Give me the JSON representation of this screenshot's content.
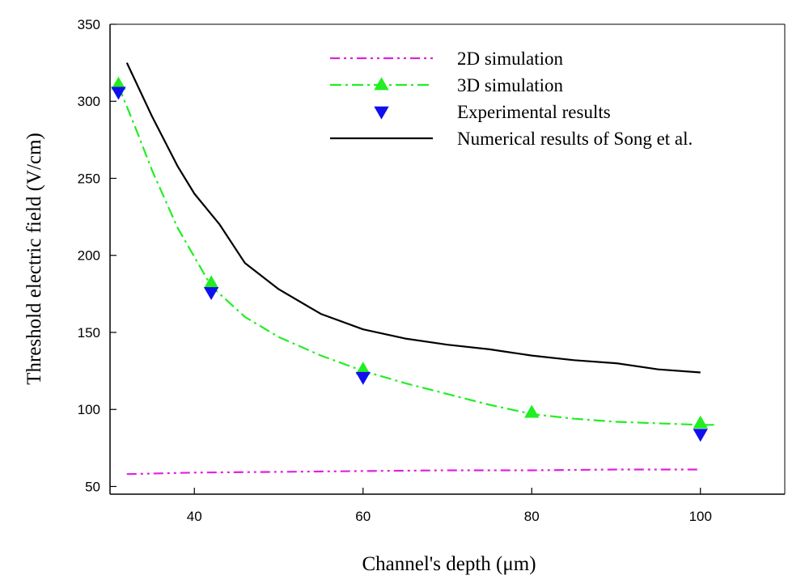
{
  "chart_data": {
    "type": "line",
    "xlabel": "Channel's depth (μm)",
    "ylabel": "Threshold electric field (V/cm)",
    "xlim": [
      30,
      110
    ],
    "ylim": [
      45,
      350
    ],
    "x_ticks": [
      40,
      60,
      80,
      100
    ],
    "y_ticks": [
      50,
      100,
      150,
      200,
      250,
      300,
      350
    ],
    "legend": "top-right",
    "grid": false,
    "series": [
      {
        "name": "2D simulation",
        "style": "dash-dot-dot",
        "color": "#e020e0",
        "marker": "none",
        "x": [
          32,
          40,
          50,
          60,
          70,
          80,
          90,
          100
        ],
        "y": [
          58,
          59,
          59.5,
          60,
          60.5,
          60.5,
          61,
          61
        ]
      },
      {
        "name": "3D simulation",
        "style": "dash-dot",
        "color": "#22ee22",
        "marker": "triangle-up",
        "x": [
          31,
          33,
          35,
          38,
          42,
          46,
          50,
          55,
          60,
          65,
          70,
          75,
          80,
          85,
          90,
          95,
          100,
          102
        ],
        "y": [
          310,
          283,
          255,
          218,
          180,
          160,
          147,
          135,
          125,
          117,
          110,
          103,
          97,
          94,
          92,
          91,
          90,
          90
        ],
        "markers_x": [
          31,
          42,
          60,
          80,
          100
        ],
        "markers_y": [
          311,
          182,
          126,
          98,
          91
        ]
      },
      {
        "name": "Experimental results",
        "style": "none",
        "color": "#1010ee",
        "marker": "triangle-down",
        "x": [
          31,
          42,
          60,
          100
        ],
        "y": [
          306,
          176,
          121,
          84
        ]
      },
      {
        "name": "Numerical results of Song et al.",
        "style": "solid",
        "color": "#000000",
        "marker": "none",
        "x": [
          32,
          35,
          38,
          40,
          43,
          46,
          50,
          55,
          60,
          65,
          70,
          75,
          80,
          85,
          90,
          95,
          100
        ],
        "y": [
          325,
          290,
          258,
          240,
          220,
          195,
          178,
          162,
          152,
          146,
          142,
          139,
          135,
          132,
          130,
          126,
          124
        ]
      }
    ]
  }
}
